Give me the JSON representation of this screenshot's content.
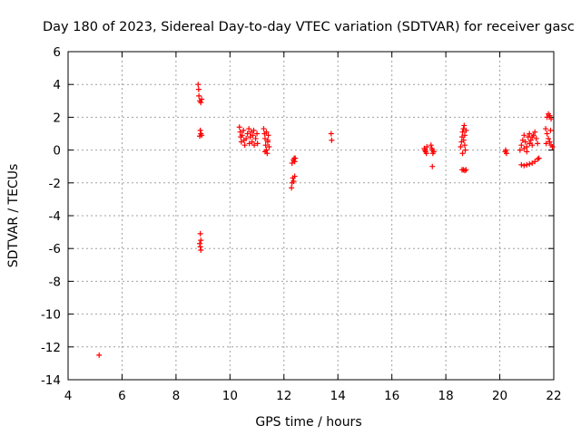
{
  "chart_data": {
    "type": "scatter",
    "title": "Day 180 of 2023, Sidereal Day-to-day VTEC variation (SDTVAR) for receiver gasc",
    "xlabel": "GPS time / hours",
    "ylabel": "SDTVAR / TECUs",
    "xlim": [
      4,
      22
    ],
    "ylim": [
      -14,
      6
    ],
    "xticks": [
      4,
      6,
      8,
      10,
      12,
      14,
      16,
      18,
      20,
      22
    ],
    "yticks": [
      -14,
      -12,
      -10,
      -8,
      -6,
      -4,
      -2,
      0,
      2,
      4,
      6
    ],
    "grid": true,
    "marker": "+",
    "color": "#ff0000",
    "series": [
      {
        "name": "SDTVAR",
        "points": [
          [
            5.15,
            -12.5
          ],
          [
            8.82,
            4.0
          ],
          [
            8.84,
            3.7
          ],
          [
            8.85,
            3.3
          ],
          [
            8.88,
            3.0
          ],
          [
            8.92,
            2.9
          ],
          [
            8.95,
            3.1
          ],
          [
            8.9,
            1.2
          ],
          [
            8.92,
            1.0
          ],
          [
            8.88,
            0.85
          ],
          [
            8.95,
            0.9
          ],
          [
            8.9,
            -5.1
          ],
          [
            8.92,
            -5.5
          ],
          [
            8.88,
            -5.7
          ],
          [
            8.9,
            -5.9
          ],
          [
            8.92,
            -6.1
          ],
          [
            10.35,
            1.4
          ],
          [
            10.38,
            1.1
          ],
          [
            10.4,
            0.8
          ],
          [
            10.42,
            0.5
          ],
          [
            10.45,
            0.9
          ],
          [
            10.5,
            1.2
          ],
          [
            10.52,
            0.6
          ],
          [
            10.55,
            0.3
          ],
          [
            10.6,
            0.7
          ],
          [
            10.65,
            1.0
          ],
          [
            10.7,
            1.3
          ],
          [
            10.72,
            0.4
          ],
          [
            10.75,
            0.8
          ],
          [
            10.78,
            1.1
          ],
          [
            10.82,
            0.5
          ],
          [
            10.85,
            0.9
          ],
          [
            10.88,
            1.2
          ],
          [
            10.9,
            0.3
          ],
          [
            10.95,
            0.7
          ],
          [
            11.0,
            1.0
          ],
          [
            11.02,
            0.4
          ],
          [
            11.25,
            1.3
          ],
          [
            11.28,
            1.0
          ],
          [
            11.3,
            0.7
          ],
          [
            11.32,
            0.3
          ],
          [
            11.35,
            0.0
          ],
          [
            11.38,
            -0.2
          ],
          [
            11.4,
            0.5
          ],
          [
            11.42,
            0.9
          ],
          [
            11.45,
            0.2
          ],
          [
            11.35,
            1.1
          ],
          [
            11.3,
            -0.1
          ],
          [
            11.4,
            0.6
          ],
          [
            12.28,
            -2.3
          ],
          [
            12.3,
            -2.0
          ],
          [
            12.33,
            -1.7
          ],
          [
            12.36,
            -1.9
          ],
          [
            12.4,
            -1.6
          ],
          [
            12.3,
            -0.8
          ],
          [
            12.35,
            -0.6
          ],
          [
            12.38,
            -0.5
          ],
          [
            12.42,
            -0.5
          ],
          [
            12.4,
            -0.7
          ],
          [
            13.75,
            1.0
          ],
          [
            13.77,
            0.6
          ],
          [
            17.2,
            0.1
          ],
          [
            17.25,
            -0.1
          ],
          [
            17.3,
            0.2
          ],
          [
            17.22,
            0.0
          ],
          [
            17.28,
            -0.2
          ],
          [
            17.45,
            0.3
          ],
          [
            17.5,
            0.0
          ],
          [
            17.52,
            -0.2
          ],
          [
            17.48,
            0.1
          ],
          [
            17.55,
            -0.1
          ],
          [
            17.5,
            -1.0
          ],
          [
            18.55,
            0.2
          ],
          [
            18.58,
            0.5
          ],
          [
            18.6,
            0.8
          ],
          [
            18.62,
            1.1
          ],
          [
            18.65,
            1.3
          ],
          [
            18.68,
            1.5
          ],
          [
            18.7,
            0.3
          ],
          [
            18.72,
            0.0
          ],
          [
            18.62,
            -0.2
          ],
          [
            18.66,
            0.6
          ],
          [
            18.75,
            1.2
          ],
          [
            18.7,
            0.9
          ],
          [
            18.6,
            -1.2
          ],
          [
            18.65,
            -1.2
          ],
          [
            18.7,
            -1.25
          ],
          [
            18.75,
            -1.2
          ],
          [
            20.2,
            -0.1
          ],
          [
            20.22,
            0.0
          ],
          [
            20.25,
            -0.2
          ],
          [
            20.75,
            0.0
          ],
          [
            20.8,
            0.3
          ],
          [
            20.85,
            0.6
          ],
          [
            20.9,
            0.9
          ],
          [
            20.95,
            0.5
          ],
          [
            21.0,
            0.2
          ],
          [
            21.05,
            0.8
          ],
          [
            21.1,
            1.0
          ],
          [
            21.15,
            0.6
          ],
          [
            21.2,
            0.3
          ],
          [
            21.25,
            0.9
          ],
          [
            21.3,
            1.1
          ],
          [
            21.35,
            0.7
          ],
          [
            21.4,
            0.4
          ],
          [
            20.9,
            0.1
          ],
          [
            21.0,
            -0.1
          ],
          [
            21.1,
            0.4
          ],
          [
            21.2,
            0.8
          ],
          [
            20.8,
            -0.9
          ],
          [
            20.9,
            -0.95
          ],
          [
            21.0,
            -0.9
          ],
          [
            21.1,
            -0.85
          ],
          [
            21.2,
            -0.8
          ],
          [
            21.3,
            -0.7
          ],
          [
            21.4,
            -0.55
          ],
          [
            21.45,
            -0.5
          ],
          [
            21.75,
            2.0
          ],
          [
            21.8,
            2.2
          ],
          [
            21.85,
            2.1
          ],
          [
            21.9,
            1.9
          ],
          [
            21.7,
            1.3
          ],
          [
            21.75,
            1.0
          ],
          [
            21.8,
            0.7
          ],
          [
            21.85,
            0.5
          ],
          [
            21.9,
            0.3
          ],
          [
            21.95,
            0.2
          ],
          [
            21.72,
            0.4
          ],
          [
            21.88,
            1.2
          ]
        ]
      }
    ]
  }
}
